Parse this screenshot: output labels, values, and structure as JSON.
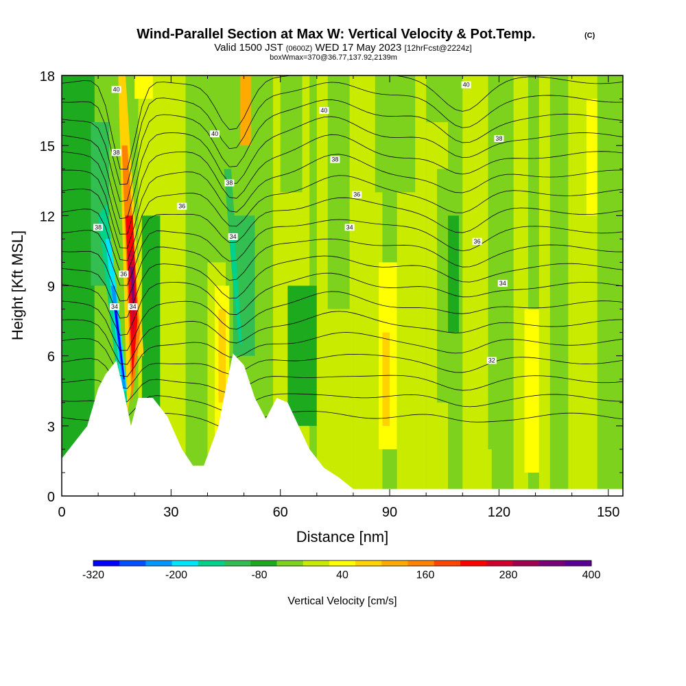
{
  "chart_data": {
    "type": "heatmap",
    "title_main": "Wind-Parallel Section at Max W: Vertical Velocity & Pot.Temp.",
    "title_mark": "(C)",
    "subtitle": {
      "a": "Valid 1500 JST",
      "b": "(0600Z)",
      "c": "WED 17 May 2023",
      "d": "[12hrFcst@2224z]"
    },
    "note": "boxWmax=370@36.77,137.92,2139m",
    "xlabel": "Distance [nm]",
    "ylabel": "Height [Kft MSL]",
    "xlim": [
      0,
      154
    ],
    "ylim": [
      0,
      18
    ],
    "xticks": [
      0,
      30,
      60,
      90,
      120,
      150
    ],
    "yticks": [
      0,
      3,
      6,
      9,
      12,
      15,
      18
    ],
    "colorbar": {
      "label": "Vertical Velocity [cm/s]",
      "tick_values": [
        "-320",
        "-200",
        "-80",
        "40",
        "160",
        "280",
        "400"
      ],
      "bounds": [
        -320,
        400
      ],
      "colors": [
        "#0000ff",
        "#0050ff",
        "#0096ff",
        "#00e6ff",
        "#00d28c",
        "#32be50",
        "#1eaa1e",
        "#7dd21e",
        "#c8eb00",
        "#ffff00",
        "#ffd200",
        "#ffaa00",
        "#ff8200",
        "#ff4600",
        "#ff0000",
        "#d2002d",
        "#a00050",
        "#780078",
        "#5a0096"
      ]
    },
    "terrain_kft": [
      [
        0,
        1.6
      ],
      [
        4,
        2.4
      ],
      [
        7,
        3.0
      ],
      [
        10,
        4.6
      ],
      [
        12,
        5.2
      ],
      [
        15,
        5.8
      ],
      [
        17,
        4.5
      ],
      [
        19,
        3.0
      ],
      [
        21,
        4.2
      ],
      [
        25,
        4.2
      ],
      [
        29,
        3.4
      ],
      [
        33,
        2.0
      ],
      [
        36,
        1.3
      ],
      [
        39,
        1.3
      ],
      [
        43,
        3.0
      ],
      [
        45,
        4.6
      ],
      [
        47,
        6.1
      ],
      [
        50,
        5.6
      ],
      [
        53,
        4.2
      ],
      [
        56,
        3.3
      ],
      [
        59,
        4.2
      ],
      [
        62,
        4.0
      ],
      [
        65,
        3.0
      ],
      [
        68,
        2.0
      ],
      [
        72,
        1.2
      ],
      [
        76,
        0.8
      ],
      [
        80,
        0.3
      ],
      [
        154,
        0.3
      ]
    ],
    "theta_contour_labels": [
      {
        "x": 15.0,
        "y": 17.4,
        "label": "40"
      },
      {
        "x": 72.0,
        "y": 16.5,
        "label": "40"
      },
      {
        "x": 111.0,
        "y": 17.6,
        "label": "40"
      },
      {
        "x": 42.0,
        "y": 15.5,
        "label": "40"
      },
      {
        "x": 15.0,
        "y": 14.7,
        "label": "38"
      },
      {
        "x": 75.0,
        "y": 14.4,
        "label": "38"
      },
      {
        "x": 46.0,
        "y": 13.4,
        "label": "38"
      },
      {
        "x": 120.0,
        "y": 15.3,
        "label": "38"
      },
      {
        "x": 10.0,
        "y": 11.5,
        "label": "38"
      },
      {
        "x": 33.0,
        "y": 12.4,
        "label": "36"
      },
      {
        "x": 81.0,
        "y": 12.9,
        "label": "36"
      },
      {
        "x": 114.0,
        "y": 10.9,
        "label": "36"
      },
      {
        "x": 17.0,
        "y": 9.5,
        "label": "36"
      },
      {
        "x": 47.0,
        "y": 11.1,
        "label": "34"
      },
      {
        "x": 79.0,
        "y": 11.5,
        "label": "34"
      },
      {
        "x": 121.0,
        "y": 9.1,
        "label": "34"
      },
      {
        "x": 14.5,
        "y": 8.1,
        "label": "34"
      },
      {
        "x": 19.5,
        "y": 8.1,
        "label": "34"
      },
      {
        "x": 118.0,
        "y": 5.8,
        "label": "32"
      }
    ]
  }
}
